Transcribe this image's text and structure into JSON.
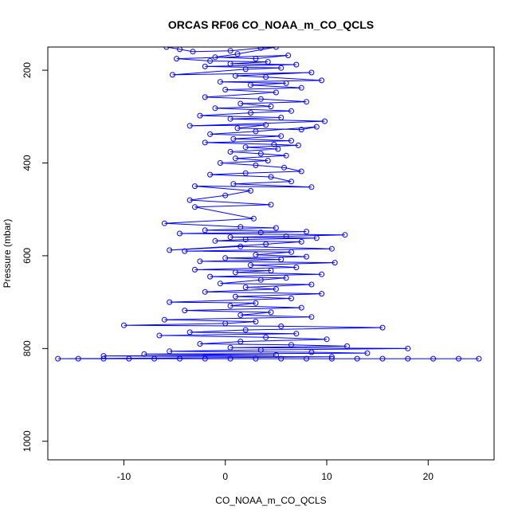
{
  "chart_data": {
    "type": "scatter",
    "title": "ORCAS RF06 CO_NOAA_m_CO_QCLS",
    "xlabel": "CO_NOAA_m_CO_QCLS",
    "ylabel": "Pressure (mbar)",
    "xlim": [
      -17.5,
      26.5
    ],
    "ylim": [
      1040,
      150
    ],
    "y_reversed": true,
    "x_ticks": [
      -10,
      0,
      10,
      20
    ],
    "y_ticks": [
      200,
      400,
      600,
      800,
      1000
    ],
    "x_tick_labels": [
      "-10",
      "0",
      "10",
      "20"
    ],
    "y_tick_labels": [
      "200",
      "400",
      "600",
      "800",
      "1000"
    ],
    "grid": false,
    "legend": "none",
    "marker": "open-circle",
    "connect_points": true,
    "colors": {
      "series": "#0000ff",
      "axis": "#000000",
      "background": "#ffffff"
    },
    "series": [
      {
        "points": [
          [
            -5.8,
            150
          ],
          [
            -4.5,
            155
          ],
          [
            -3.2,
            160
          ],
          [
            0.5,
            158
          ],
          [
            3.5,
            152
          ],
          [
            5.0,
            150
          ],
          [
            1.2,
            165
          ],
          [
            -1.0,
            172
          ],
          [
            3.0,
            175
          ],
          [
            6.2,
            168
          ],
          [
            -4.8,
            175
          ],
          [
            -1.5,
            180
          ],
          [
            4.2,
            182
          ],
          [
            0.5,
            186
          ],
          [
            7.0,
            188
          ],
          [
            -2.0,
            192
          ],
          [
            5.5,
            195
          ],
          [
            2.0,
            198
          ],
          [
            -5.2,
            210
          ],
          [
            8.5,
            205
          ],
          [
            1.0,
            212
          ],
          [
            4.0,
            215
          ],
          [
            9.5,
            222
          ],
          [
            -0.5,
            225
          ],
          [
            6.0,
            228
          ],
          [
            2.5,
            232
          ],
          [
            7.5,
            238
          ],
          [
            0.0,
            242
          ],
          [
            5.0,
            248
          ],
          [
            -2.0,
            258
          ],
          [
            3.5,
            262
          ],
          [
            8.0,
            268
          ],
          [
            1.5,
            272
          ],
          [
            4.5,
            278
          ],
          [
            -1.0,
            282
          ],
          [
            6.5,
            288
          ],
          [
            2.5,
            292
          ],
          [
            -2.5,
            298
          ],
          [
            5.5,
            302
          ],
          [
            0.5,
            305
          ],
          [
            9.8,
            310
          ],
          [
            -3.5,
            320
          ],
          [
            4.0,
            318
          ],
          [
            1.2,
            325
          ],
          [
            7.5,
            328
          ],
          [
            9.0,
            322
          ],
          [
            3.0,
            332
          ],
          [
            -1.5,
            338
          ],
          [
            5.5,
            342
          ],
          [
            0.8,
            348
          ],
          [
            6.5,
            352
          ],
          [
            -2.0,
            356
          ],
          [
            4.8,
            360
          ],
          [
            7.2,
            362
          ],
          [
            2.0,
            366
          ],
          [
            5.2,
            370
          ],
          [
            0.5,
            376
          ],
          [
            3.5,
            380
          ],
          [
            6.0,
            384
          ],
          [
            1.0,
            390
          ],
          [
            4.2,
            395
          ],
          [
            -0.5,
            400
          ],
          [
            3.0,
            405
          ],
          [
            5.8,
            410
          ],
          [
            7.5,
            418
          ],
          [
            2.0,
            422
          ],
          [
            -1.5,
            425
          ],
          [
            4.5,
            430
          ],
          [
            6.5,
            440
          ],
          [
            0.8,
            445
          ],
          [
            8.5,
            452
          ],
          [
            -3.0,
            450
          ],
          [
            2.5,
            460
          ],
          [
            0.0,
            470
          ],
          [
            -3.5,
            480
          ],
          [
            4.5,
            490
          ],
          [
            -3.0,
            495
          ],
          [
            2.8,
            520
          ],
          [
            -6.0,
            530
          ],
          [
            1.5,
            538
          ],
          [
            5.0,
            540
          ],
          [
            -2.0,
            545
          ],
          [
            8.0,
            548
          ],
          [
            3.5,
            550
          ],
          [
            -4.5,
            552
          ],
          [
            11.8,
            555
          ],
          [
            6.0,
            558
          ],
          [
            0.5,
            560
          ],
          [
            9.0,
            562
          ],
          [
            2.0,
            565
          ],
          [
            -1.0,
            568
          ],
          [
            7.5,
            570
          ],
          [
            4.0,
            575
          ],
          [
            -5.5,
            588
          ],
          [
            1.5,
            580
          ],
          [
            10.5,
            585
          ],
          [
            -4.0,
            590
          ],
          [
            6.5,
            592
          ],
          [
            3.0,
            598
          ],
          [
            8.0,
            602
          ],
          [
            0.0,
            605
          ],
          [
            5.5,
            608
          ],
          [
            -2.5,
            612
          ],
          [
            10.8,
            615
          ],
          [
            2.5,
            620
          ],
          [
            7.0,
            625
          ],
          [
            -3.0,
            630
          ],
          [
            4.5,
            632
          ],
          [
            1.0,
            636
          ],
          [
            9.5,
            640
          ],
          [
            -1.5,
            645
          ],
          [
            6.0,
            648
          ],
          [
            3.5,
            652
          ],
          [
            -0.5,
            660
          ],
          [
            8.5,
            662
          ],
          [
            2.0,
            668
          ],
          [
            5.0,
            672
          ],
          [
            -2.0,
            678
          ],
          [
            9.5,
            682
          ],
          [
            1.0,
            688
          ],
          [
            6.5,
            692
          ],
          [
            -5.5,
            700
          ],
          [
            3.0,
            702
          ],
          [
            0.5,
            708
          ],
          [
            7.5,
            712
          ],
          [
            -4.0,
            718
          ],
          [
            4.5,
            722
          ],
          [
            1.5,
            728
          ],
          [
            8.5,
            732
          ],
          [
            -6.0,
            738
          ],
          [
            3.0,
            742
          ],
          [
            0.0,
            746
          ],
          [
            -10.0,
            750
          ],
          [
            5.5,
            752
          ],
          [
            15.5,
            755
          ],
          [
            2.0,
            760
          ],
          [
            -3.5,
            765
          ],
          [
            7.0,
            768
          ],
          [
            -6.5,
            772
          ],
          [
            4.0,
            776
          ],
          [
            10.0,
            780
          ],
          [
            1.5,
            785
          ],
          [
            -2.5,
            790
          ],
          [
            6.5,
            792
          ],
          [
            12.0,
            795
          ],
          [
            0.5,
            798
          ],
          [
            18.0,
            800
          ],
          [
            3.5,
            803
          ],
          [
            -5.5,
            806
          ],
          [
            8.5,
            808
          ],
          [
            14.0,
            810
          ],
          [
            -8.0,
            812
          ],
          [
            5.0,
            814
          ],
          [
            -12.0,
            816
          ],
          [
            10.5,
            818
          ],
          [
            -16.5,
            822
          ],
          [
            -14.5,
            822
          ],
          [
            -12.0,
            822
          ],
          [
            -9.5,
            822
          ],
          [
            -7.0,
            822
          ],
          [
            -4.5,
            822
          ],
          [
            -2.0,
            822
          ],
          [
            0.5,
            822
          ],
          [
            3.0,
            822
          ],
          [
            5.5,
            822
          ],
          [
            8.0,
            822
          ],
          [
            10.5,
            822
          ],
          [
            13.0,
            822
          ],
          [
            15.5,
            822
          ],
          [
            18.0,
            822
          ],
          [
            20.5,
            822
          ],
          [
            23.0,
            822
          ],
          [
            25.0,
            822
          ]
        ]
      }
    ]
  }
}
